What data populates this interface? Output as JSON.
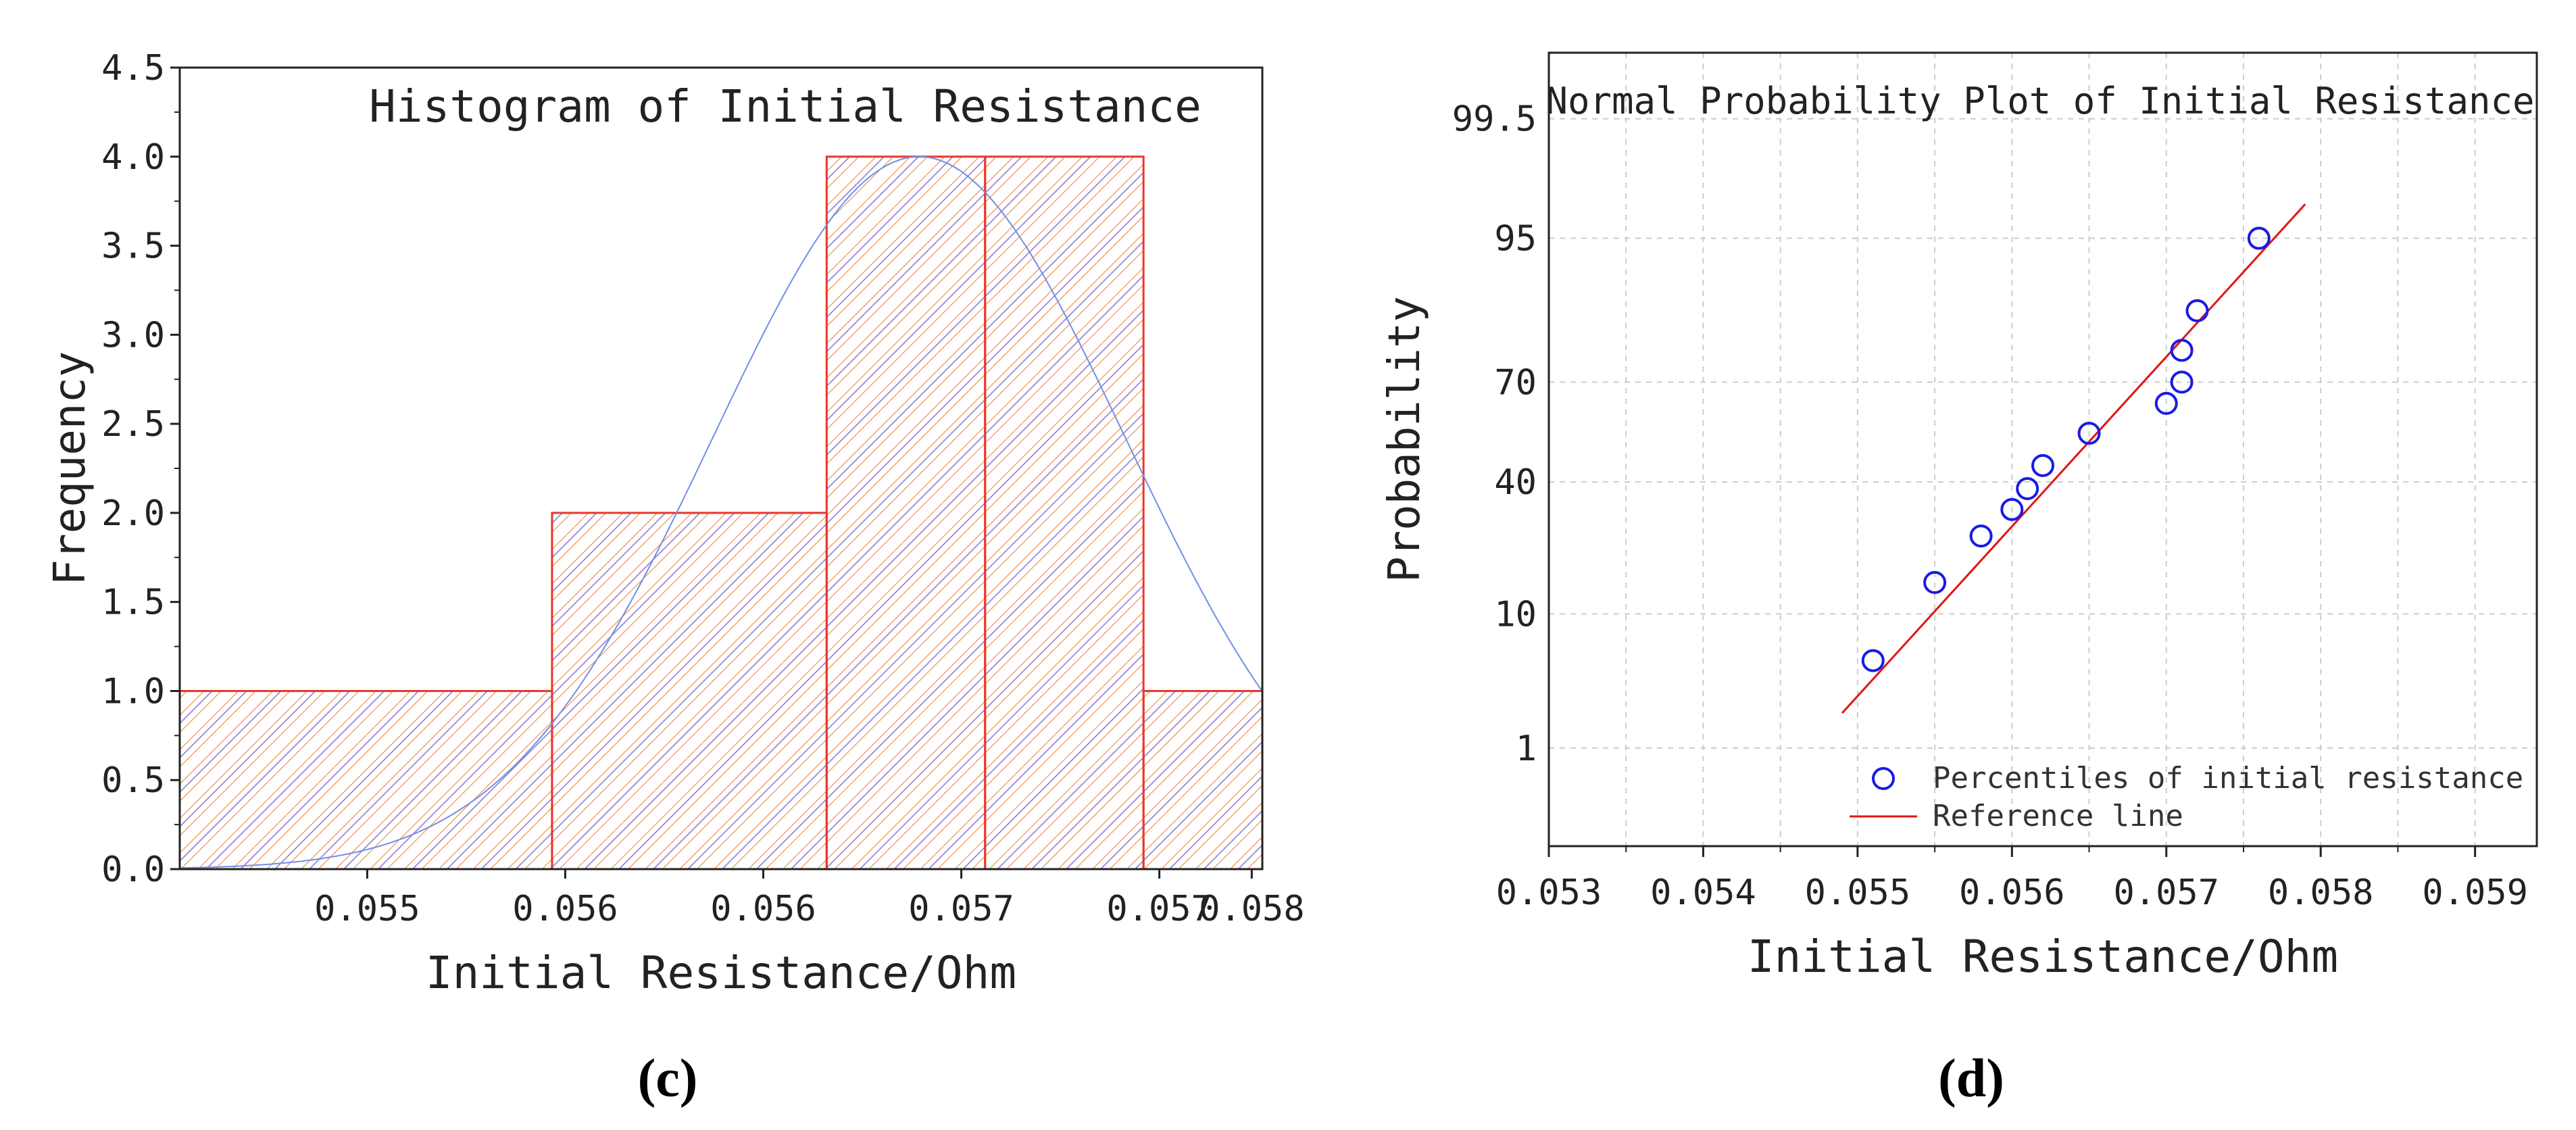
{
  "chart_data": [
    {
      "type": "bar",
      "panel_label": "(c)",
      "title": "Histogram of Initial Resistance",
      "xlabel": "Initial Resistance/Ohm",
      "ylabel": "Frequency",
      "xlim": [
        0.05415,
        0.05825
      ],
      "ylim": [
        0,
        4.5
      ],
      "x_tick_values": [
        0.05486,
        0.05561,
        0.05636,
        0.05711,
        0.05786,
        0.05821
      ],
      "x_tick_labels": [
        "0.055",
        "0.056",
        "0.056",
        "0.057",
        "0.057",
        "0.058"
      ],
      "y_ticks": [
        0.0,
        0.5,
        1.0,
        1.5,
        2.0,
        2.5,
        3.0,
        3.5,
        4.0,
        4.5
      ],
      "y_tick_labels": [
        "0.0",
        "0.5",
        "1.0",
        "1.5",
        "2.0",
        "2.5",
        "3.0",
        "3.5",
        "4.0",
        "4.5"
      ],
      "bins": [
        {
          "from": 0.05415,
          "to": 0.05556,
          "count": 1
        },
        {
          "from": 0.05556,
          "to": 0.0566,
          "count": 2
        },
        {
          "from": 0.0566,
          "to": 0.0572,
          "count": 4
        },
        {
          "from": 0.0572,
          "to": 0.0578,
          "count": 4
        },
        {
          "from": 0.0578,
          "to": 0.05825,
          "count": 1
        }
      ],
      "normal_fit": {
        "mean": 0.05695,
        "sd": 0.00078,
        "peak": 4.0
      },
      "colors": {
        "bar_edge": "#e8372b",
        "hatch": "#f07c2f",
        "hatch2": "#8c7bd0",
        "curve": "#6f8fe8"
      }
    },
    {
      "type": "scatter",
      "panel_label": "(d)",
      "title": "Normal Probability Plot of Initial Resistance",
      "xlabel": "Initial Resistance/Ohm",
      "ylabel": "Probability",
      "xlim": [
        0.053,
        0.0594
      ],
      "x_ticks": [
        0.053,
        0.054,
        0.055,
        0.056,
        0.057,
        0.058,
        0.059
      ],
      "x_tick_labels": [
        "0.053",
        "0.054",
        "0.055",
        "0.056",
        "0.057",
        "0.058",
        "0.059"
      ],
      "y_scale": "normal-probability",
      "ylim": [
        0.1,
        99.9
      ],
      "y_ticks": [
        1,
        10,
        40,
        70,
        95,
        99.5
      ],
      "y_tick_labels": [
        "1",
        "10",
        "40",
        "70",
        "95",
        "99.5"
      ],
      "points": [
        {
          "x": 0.0551,
          "y": 5.0
        },
        {
          "x": 0.0555,
          "y": 15.0
        },
        {
          "x": 0.0558,
          "y": 25.0
        },
        {
          "x": 0.056,
          "y": 32.0
        },
        {
          "x": 0.0561,
          "y": 38.0
        },
        {
          "x": 0.0562,
          "y": 45.0
        },
        {
          "x": 0.0565,
          "y": 55.0
        },
        {
          "x": 0.057,
          "y": 64.0
        },
        {
          "x": 0.0571,
          "y": 70.0
        },
        {
          "x": 0.0571,
          "y": 78.0
        },
        {
          "x": 0.0572,
          "y": 86.0
        },
        {
          "x": 0.0576,
          "y": 95.0
        }
      ],
      "reference_line": {
        "x": [
          0.0549,
          0.0579
        ],
        "y": [
          2.0,
          97.2
        ]
      },
      "legend": {
        "position": "bottom-right",
        "entries": [
          "Percentiles of initial resistance",
          "Reference line"
        ]
      },
      "grid": true,
      "colors": {
        "points": "#1a1ae6",
        "line": "#e01414",
        "grid": "#cccccc"
      }
    }
  ]
}
